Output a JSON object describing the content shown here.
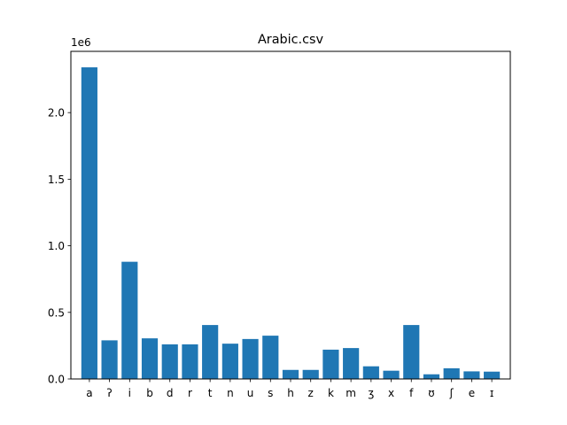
{
  "chart_data": {
    "type": "bar",
    "title": "Arabic.csv",
    "xlabel": "",
    "ylabel": "",
    "offset_label": "1e6",
    "ylim": [
      0,
      2460000
    ],
    "yticks": [
      0,
      500000,
      1000000,
      1500000,
      2000000
    ],
    "ytick_labels": [
      "0.0",
      "0.5",
      "1.0",
      "1.5",
      "2.0"
    ],
    "grid": false,
    "bar_color": "#1f77b4",
    "categories": [
      "a",
      "ʔ",
      "i",
      "b",
      "d",
      "r",
      "t",
      "n",
      "u",
      "s",
      "h",
      "z",
      "k",
      "m",
      "ʒ",
      "x",
      "f",
      "ʊ",
      "ʃ",
      "e",
      "ɪ"
    ],
    "values": [
      2340000,
      290000,
      880000,
      305000,
      260000,
      260000,
      405000,
      265000,
      300000,
      325000,
      68000,
      68000,
      220000,
      232000,
      95000,
      62000,
      405000,
      35000,
      80000,
      57000,
      55000
    ]
  }
}
